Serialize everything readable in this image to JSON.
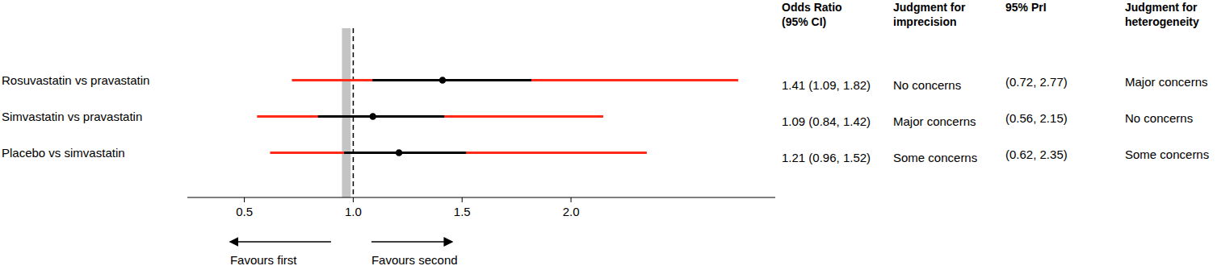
{
  "chart_data": {
    "type": "forest",
    "xlim": [
      0.24,
      2.94
    ],
    "xticks": [
      0.5,
      {
        "value": 1,
        "label": "1.0"
      },
      1.5,
      {
        "value": 2,
        "label": "2.0"
      }
    ],
    "reference_line": 1,
    "equivalence_band": [
      0.95,
      0.99
    ],
    "direction_labels": [
      "Favours first",
      "Favours second"
    ],
    "headers": [
      [
        "Odds Ratio",
        "(95% CI)"
      ],
      [
        "Judgment for",
        "imprecision"
      ],
      [
        "95% PrI"
      ],
      [
        "Judgment for",
        "heterogeneity"
      ]
    ],
    "rows": [
      {
        "label": "Rosuvastatin vs pravastatin",
        "or": 1.41,
        "ci": [
          1.09,
          1.82
        ],
        "or_label": "1.41 (1.09, 1.82)",
        "imprecision": "No concerns",
        "pri": [
          0.72,
          2.77
        ],
        "pri_label": "(0.72, 2.77)",
        "heterogeneity": "Major concerns"
      },
      {
        "label": "Simvastatin vs pravastatin",
        "or": 1.09,
        "ci": [
          0.84,
          1.42
        ],
        "or_label": "1.09 (0.84, 1.42)",
        "imprecision": "Major concerns",
        "pri": [
          0.56,
          2.15
        ],
        "pri_label": "(0.56, 2.15)",
        "heterogeneity": "No concerns"
      },
      {
        "label": "Placebo vs simvastatin",
        "or": 1.21,
        "ci": [
          0.96,
          1.52
        ],
        "or_label": "1.21 (0.96, 1.52)",
        "imprecision": "Some concerns",
        "pri": [
          0.62,
          2.35
        ],
        "pri_label": "(0.62, 2.35)",
        "heterogeneity": "Some concerns"
      }
    ]
  }
}
